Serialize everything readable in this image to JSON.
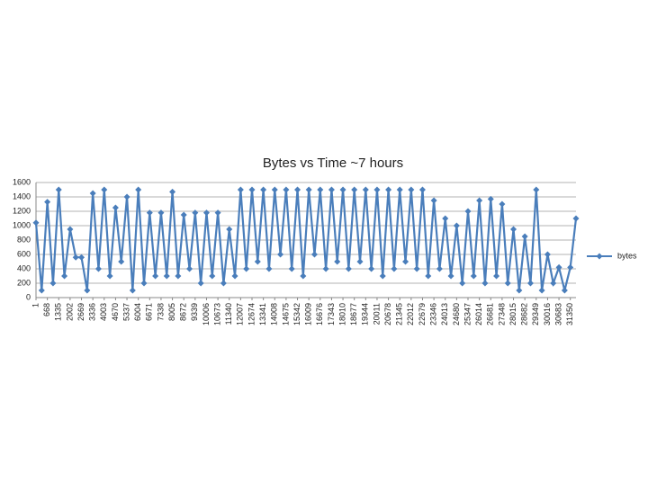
{
  "chart_data": {
    "type": "line",
    "title": "Bytes vs Time ~7 hours",
    "x": [
      1,
      334,
      668,
      1001,
      1335,
      1668,
      2002,
      2335,
      2669,
      3002,
      3336,
      3669,
      4003,
      4336,
      4670,
      5003,
      5337,
      5670,
      6004,
      6337,
      6671,
      7004,
      7338,
      7671,
      8005,
      8338,
      8672,
      9005,
      9339,
      9672,
      10006,
      10339,
      10673,
      11006,
      11340,
      11673,
      12007,
      12340,
      12674,
      13007,
      13341,
      13674,
      14008,
      14341,
      14675,
      15008,
      15342,
      15675,
      16009,
      16342,
      16676,
      17009,
      17343,
      17676,
      18010,
      18343,
      18677,
      19010,
      19344,
      19677,
      20011,
      20344,
      20678,
      21011,
      21345,
      21678,
      22012,
      22345,
      22679,
      23012,
      23346,
      23679,
      24013,
      24346,
      24680,
      25013,
      25347,
      25680,
      26014,
      26347,
      26681,
      27014,
      27348,
      27681,
      28015,
      28348,
      28682,
      29015,
      29349,
      29682,
      30016,
      30349,
      30683,
      31016,
      31350,
      31683
    ],
    "series": [
      {
        "name": "bytes",
        "color": "#4a7ebb",
        "values": [
          1040,
          100,
          1330,
          200,
          1500,
          300,
          950,
          560,
          560,
          100,
          1450,
          400,
          1500,
          300,
          1250,
          500,
          1400,
          100,
          1500,
          200,
          1180,
          300,
          1180,
          300,
          1470,
          300,
          1150,
          400,
          1180,
          200,
          1180,
          300,
          1180,
          200,
          950,
          300,
          1500,
          400,
          1500,
          500,
          1500,
          400,
          1500,
          600,
          1500,
          400,
          1500,
          300,
          1500,
          600,
          1500,
          400,
          1500,
          500,
          1500,
          400,
          1500,
          500,
          1500,
          400,
          1500,
          300,
          1500,
          400,
          1500,
          500,
          1500,
          400,
          1500,
          300,
          1350,
          400,
          1100,
          300,
          1000,
          200,
          1200,
          300,
          1350,
          200,
          1370,
          300,
          1300,
          200,
          950,
          100,
          850,
          200,
          1500,
          100,
          600,
          200,
          420,
          100,
          420,
          1100
        ]
      }
    ],
    "xlim": [
      1,
      31683
    ],
    "xticks": [
      1,
      668,
      1335,
      2002,
      2669,
      3336,
      4003,
      4670,
      5337,
      6004,
      6671,
      7338,
      8005,
      8672,
      9339,
      10006,
      10673,
      11340,
      12007,
      12674,
      13341,
      14008,
      14675,
      15342,
      16009,
      16676,
      17343,
      18010,
      18677,
      19344,
      20011,
      20678,
      21345,
      22012,
      22679,
      23346,
      24013,
      24680,
      25347,
      26014,
      26681,
      27348,
      28015,
      28682,
      29349,
      30016,
      30683,
      31350
    ],
    "ylim": [
      0,
      1600
    ],
    "yticks": [
      0,
      200,
      400,
      600,
      800,
      1000,
      1200,
      1400,
      1600
    ],
    "grid": true,
    "legend": "right"
  }
}
